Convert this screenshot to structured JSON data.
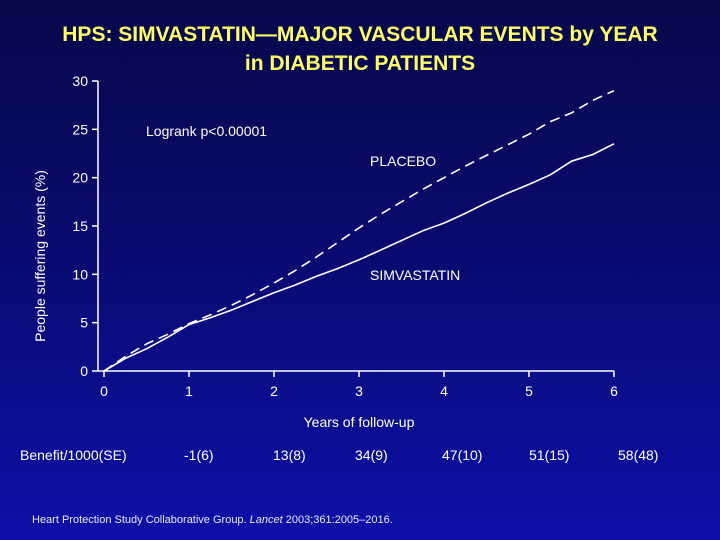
{
  "title_line1": "HPS: SIMVASTATIN—MAJOR VASCULAR EVENTS by YEAR",
  "title_line2": "in DIABETIC PATIENTS",
  "chart_data": {
    "type": "line",
    "title": "HPS: SIMVASTATIN—MAJOR VASCULAR EVENTS by YEAR in DIABETIC PATIENTS",
    "xlabel": "Years of follow-up",
    "ylabel": "People suffering events (%)",
    "xlim": [
      0,
      6
    ],
    "ylim": [
      0,
      30
    ],
    "x_ticks": [
      0,
      1,
      2,
      3,
      4,
      5,
      6
    ],
    "y_ticks": [
      0,
      5,
      10,
      15,
      20,
      25,
      30
    ],
    "annotation": "Logrank p<0.00001",
    "grid": false,
    "series": [
      {
        "name": "PLACEBO",
        "style": "dashed",
        "color": "#ffffff",
        "x": [
          0,
          0.25,
          0.5,
          0.75,
          1,
          1.25,
          1.5,
          1.75,
          2,
          2.25,
          2.5,
          2.75,
          3,
          3.25,
          3.5,
          3.75,
          4,
          4.25,
          4.5,
          4.75,
          5,
          5.25,
          5.5,
          5.75,
          6
        ],
        "y": [
          0,
          1.5,
          2.8,
          3.8,
          4.9,
          5.8,
          6.8,
          7.9,
          9.1,
          10.4,
          11.8,
          13.3,
          14.8,
          16.2,
          17.5,
          18.8,
          20.0,
          21.2,
          22.3,
          23.4,
          24.5,
          25.8,
          26.7,
          28.0,
          29.0
        ]
      },
      {
        "name": "SIMVASTATIN",
        "style": "solid",
        "color": "#ffffff",
        "x": [
          0,
          0.25,
          0.5,
          0.75,
          1,
          1.25,
          1.5,
          1.75,
          2,
          2.25,
          2.5,
          2.75,
          3,
          3.25,
          3.5,
          3.75,
          4,
          4.25,
          4.5,
          4.75,
          5,
          5.25,
          5.5,
          5.75,
          6
        ],
        "y": [
          0,
          1.3,
          2.3,
          3.5,
          4.8,
          5.5,
          6.3,
          7.2,
          8.1,
          8.9,
          9.8,
          10.6,
          11.5,
          12.5,
          13.5,
          14.5,
          15.3,
          16.3,
          17.4,
          18.4,
          19.3,
          20.3,
          21.7,
          22.4,
          23.5
        ]
      }
    ]
  },
  "benefit": {
    "label": "Benefit/1000(SE)",
    "values": [
      "-1(6)",
      "13(8)",
      "34(9)",
      "47(10)",
      "51(15)",
      "58(48)"
    ]
  },
  "citation": {
    "before": "Heart Protection Study Collaborative Group. ",
    "journal": "Lancet",
    "after": " 2003;361:2005–2016."
  }
}
